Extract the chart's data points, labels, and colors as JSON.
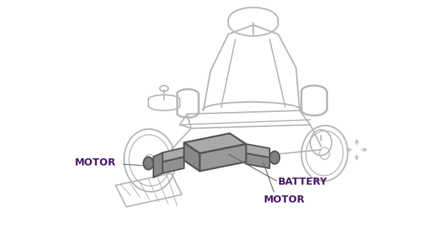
{
  "bg_color": "#ffffff",
  "outline_color": "#b5b5b5",
  "dark_outline": "#555555",
  "battery_fill": "#aaaaaa",
  "battery_top": "#999999",
  "battery_side": "#888888",
  "motor_fill": "#999999",
  "motor_side": "#888888",
  "label_color": "#4a1a6b",
  "label_motor_left": "MOTOR",
  "label_battery": "BATTERY",
  "label_motor_right": "MOTOR",
  "figsize": [
    6.0,
    3.38
  ],
  "dpi": 100
}
